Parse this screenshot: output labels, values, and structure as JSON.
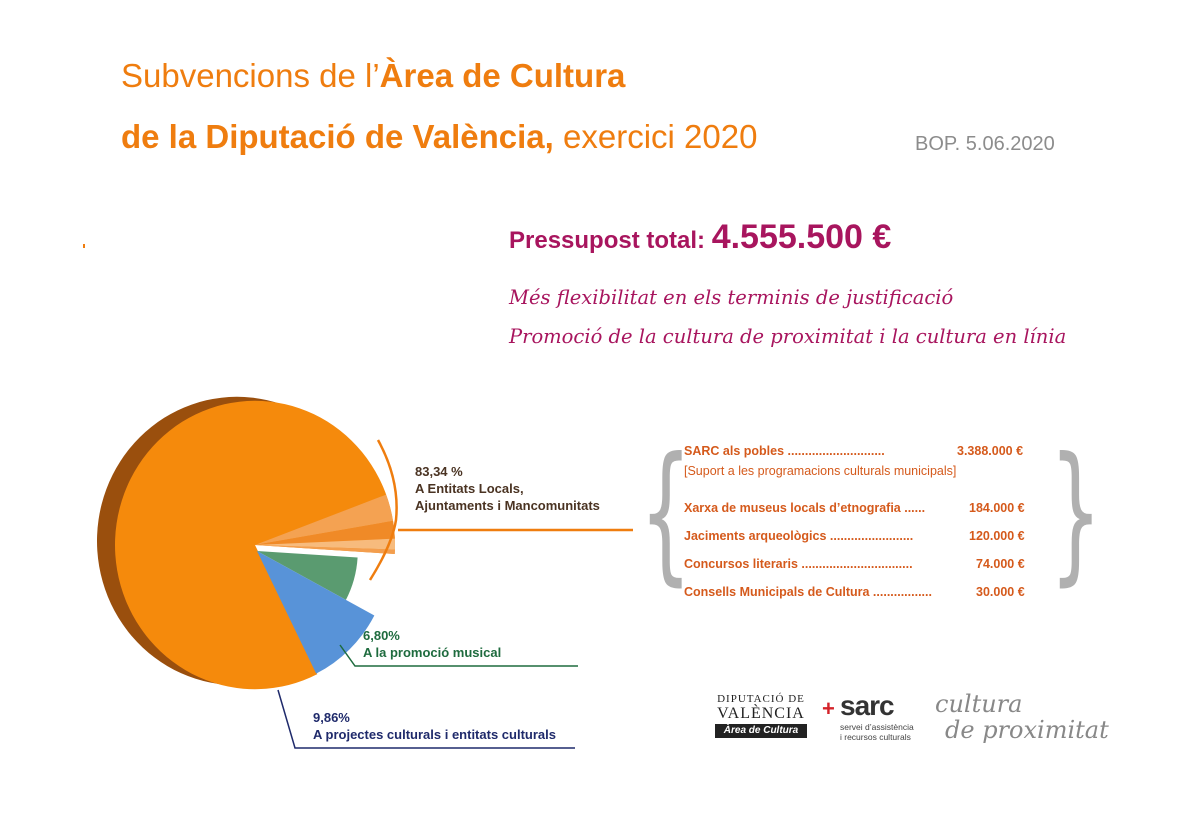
{
  "header": {
    "title_line1_normal": "Subvencions de l’",
    "title_line1_bold": "Àrea de Cultura",
    "title_line2_bold": "de la Diputació de València,",
    "title_line2_normal": " exercici 2020",
    "bop": "BOP. 5.06.2020"
  },
  "budget": {
    "label": "Pressupost total: ",
    "value": "4.555.500 €"
  },
  "highlights": [
    "Més flexibilitat en els terminis de justificació",
    "Promoció de la cultura de proximitat i la cultura en línia"
  ],
  "chart_data": {
    "type": "pie",
    "title": "",
    "slices": [
      {
        "percent_label": "83,34 %",
        "label_line1": "A Entitats Locals,",
        "label_line2": "Ajuntaments i Mancomunitats",
        "value": 83.34,
        "color": "#f58a0c"
      },
      {
        "percent_label": "6,80%",
        "label_line1": "A la promoció musical",
        "value": 6.8,
        "color": "#5a9b70"
      },
      {
        "percent_label": "9,86%",
        "label_line1": "A projectes culturals i entitats culturals",
        "value": 9.86,
        "color": "#5893d8"
      }
    ],
    "breakdown": [
      {
        "name": "SARC als pobles",
        "dots": " ............................",
        "amount": "3.388.000 €",
        "value": 3388000
      },
      {
        "name": "Xarxa de museus locals d’etnografia",
        "dots": " ......",
        "amount": "184.000 €",
        "value": 184000
      },
      {
        "name": "Jaciments arqueològics",
        "dots": " ........................",
        "amount": "120.000 €",
        "value": 120000
      },
      {
        "name": "Concursos literaris",
        "dots": " ................................",
        "amount": "74.000 €",
        "value": 74000
      },
      {
        "name": "Consells Municipals de Cultura",
        "dots": " .................",
        "amount": "30.000 €",
        "value": 30000
      }
    ],
    "breakdown_note": "[Suport a les programacions culturals municipals]"
  },
  "logos": {
    "dipu_line1": "DIPUTACIÓ DE",
    "dipu_line2": "VALÈNCIA",
    "dipu_line3": "Àrea de Cultura",
    "sarc_cross": "+",
    "sarc_name": "sarc",
    "sarc_sub1": "servei d’assistència",
    "sarc_sub2": "i recursos culturals",
    "cultura_line1": "cultura",
    "cultura_line2": "de proximitat"
  },
  "colors": {
    "orange": "#ef7d0f",
    "magenta": "#a8155e",
    "detail": "#d55a1c",
    "gray": "#8c8c8c"
  }
}
